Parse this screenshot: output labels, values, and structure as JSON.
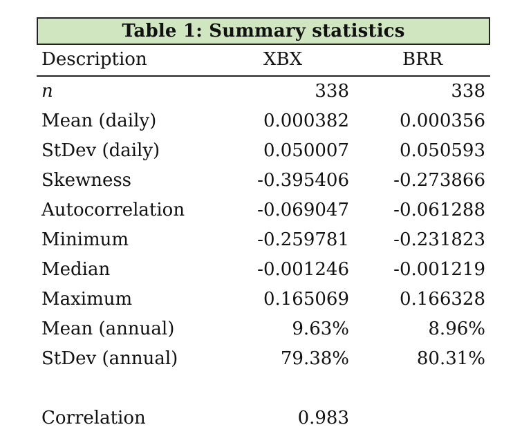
{
  "table": {
    "title": "Table 1: Summary statistics",
    "headers": [
      "Description",
      "XBX",
      "BRR"
    ],
    "rows": [
      {
        "label": "n",
        "xbx": "338",
        "brr": "338"
      },
      {
        "label": "Mean (daily)",
        "xbx": "0.000382",
        "brr": "0.000356"
      },
      {
        "label": "StDev (daily)",
        "xbx": "0.050007",
        "brr": "0.050593"
      },
      {
        "label": "Skewness",
        "xbx": "-0.395406",
        "brr": "-0.273866"
      },
      {
        "label": "Autocorrelation",
        "xbx": "-0.069047",
        "brr": "-0.061288"
      },
      {
        "label": "Minimum",
        "xbx": "-0.259781",
        "brr": "-0.231823"
      },
      {
        "label": "Median",
        "xbx": "-0.001246",
        "brr": "-0.001219"
      },
      {
        "label": "Maximum",
        "xbx": "0.165069",
        "brr": "0.166328"
      },
      {
        "label": "Mean (annual)",
        "xbx": "9.63%",
        "brr": "8.96%"
      },
      {
        "label": "StDev (annual)",
        "xbx": "79.38%",
        "brr": "80.31%"
      }
    ],
    "correlation": {
      "label": "Correlation",
      "value": "0.983"
    }
  },
  "colors": {
    "title_background": "#cfe6c0",
    "border": "#222222",
    "text": "#111111"
  }
}
